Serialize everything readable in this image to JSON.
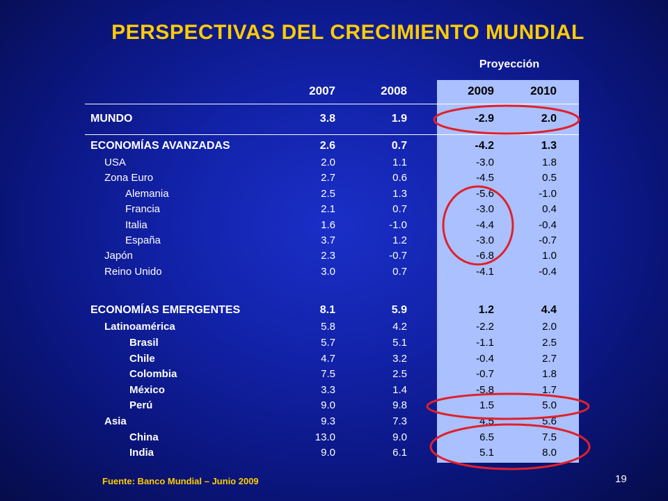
{
  "title": "PERSPECTIVAS DEL CRECIMIENTO MUNDIAL",
  "projection_label": "Proyección",
  "years": [
    "2007",
    "2008",
    "2009",
    "2010"
  ],
  "rows": [
    {
      "label": "MUNDO",
      "v": [
        "3.8",
        "1.9",
        "-2.9",
        "2.0"
      ]
    },
    {
      "label": "ECONOMÍAS AVANZADAS",
      "v": [
        "2.6",
        "0.7",
        "-4.2",
        "1.3"
      ]
    },
    {
      "label": "USA",
      "v": [
        "2.0",
        "1.1",
        "-3.0",
        "1.8"
      ]
    },
    {
      "label": "Zona Euro",
      "v": [
        "2.7",
        "0.6",
        "-4.5",
        "0.5"
      ]
    },
    {
      "label": "Alemania",
      "v": [
        "2.5",
        "1.3",
        "-5.6",
        "-1.0"
      ]
    },
    {
      "label": "Francia",
      "v": [
        "2.1",
        "0.7",
        "-3.0",
        "0.4"
      ]
    },
    {
      "label": "Italia",
      "v": [
        "1.6",
        "-1.0",
        "-4.4",
        "-0.4"
      ]
    },
    {
      "label": "España",
      "v": [
        "3.7",
        "1.2",
        "-3.0",
        "-0.7"
      ]
    },
    {
      "label": "Japón",
      "v": [
        "2.3",
        "-0.7",
        "-6.8",
        "1.0"
      ]
    },
    {
      "label": "Reino Unido",
      "v": [
        "3.0",
        "0.7",
        "-4.1",
        "-0.4"
      ]
    },
    {
      "label": "ECONOMÍAS EMERGENTES",
      "v": [
        "8.1",
        "5.9",
        "1.2",
        "4.4"
      ]
    },
    {
      "label": "Latinoamérica",
      "v": [
        "5.8",
        "4.2",
        "-2.2",
        "2.0"
      ]
    },
    {
      "label": "Brasil",
      "v": [
        "5.7",
        "5.1",
        "-1.1",
        "2.5"
      ]
    },
    {
      "label": "Chile",
      "v": [
        "4.7",
        "3.2",
        "-0.4",
        "2.7"
      ]
    },
    {
      "label": "Colombia",
      "v": [
        "7.5",
        "2.5",
        "-0.7",
        "1.8"
      ]
    },
    {
      "label": "México",
      "v": [
        "3.3",
        "1.4",
        "-5.8",
        "1.7"
      ]
    },
    {
      "label": "Perú",
      "v": [
        "9.0",
        "9.8",
        "1.5",
        "5.0"
      ]
    },
    {
      "label": "Asia",
      "v": [
        "9.3",
        "7.3",
        "4.5",
        "5.6"
      ]
    },
    {
      "label": "China",
      "v": [
        "13.0",
        "9.0",
        "6.5",
        "7.5"
      ]
    },
    {
      "label": "India",
      "v": [
        "9.0",
        "6.1",
        "5.1",
        "8.0"
      ]
    }
  ],
  "source": "Fuente: Banco Mundial – Junio 2009",
  "page_number": "19",
  "colors": {
    "title": "#ffcc00",
    "highlight_band": "#aac0ff",
    "annotation_ring": "#e0202a"
  }
}
